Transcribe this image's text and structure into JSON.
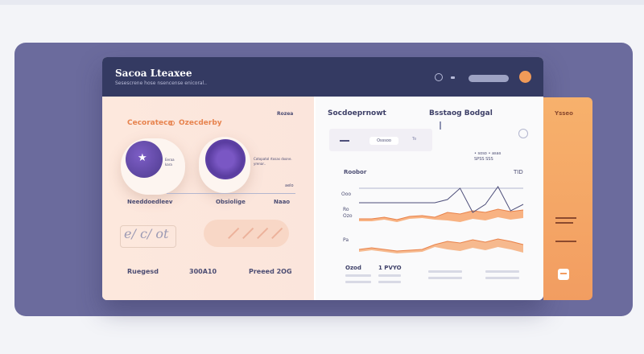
{
  "window": {
    "title": "Sacoa Lteaxee",
    "subtitle": "Sesescrene hose nsencense enicoral.."
  },
  "left_panel": {
    "tab1": "Cecorateca",
    "tab2": "Ozecderby",
    "corner": "Rozea",
    "card_b_text": "Cotopatol rtosas dxone. yrenar..",
    "card_a_text": "Eeraa kara",
    "small": "aelo",
    "labels": [
      "Needdoedleev",
      "Obsiolige",
      "Naao"
    ],
    "script": "e/ c/ ot",
    "footer": [
      "Ruegesd",
      "300A10",
      "Preeed 2OG"
    ]
  },
  "right_panel": {
    "title1": "Socdoeprnowt",
    "title2": "Bsstaog Bodgal",
    "tab": "Osssoo",
    "tick": "Te",
    "legend": [
      "• soso  • asas",
      "SPSS  SSS"
    ],
    "chart_head": "Roobor",
    "chart_head_right": "TID",
    "y_labels": [
      "Ooo",
      "Ro",
      "Ozo",
      "Pa"
    ],
    "footer": [
      "Ozod",
      "1 PVYO"
    ]
  },
  "side_card": {
    "label": "Ysseo"
  },
  "colors": {
    "accent": "#f29d61",
    "navy": "#343a62",
    "purple": "#6b57b8",
    "backdrop": "#6b6b9d"
  },
  "chart_data": {
    "type": "area",
    "series": [
      {
        "values": [
          48,
          48,
          46,
          49,
          45,
          44,
          46,
          40,
          42,
          38,
          40,
          36,
          39,
          37
        ]
      },
      {
        "values": [
          86,
          84,
          86,
          88,
          87,
          86,
          80,
          76,
          78,
          74,
          77,
          73,
          76,
          80
        ]
      }
    ],
    "line_values": [
      28,
      28,
      28,
      28,
      28,
      28,
      28,
      24,
      10,
      40,
      30,
      8,
      38,
      30
    ]
  }
}
